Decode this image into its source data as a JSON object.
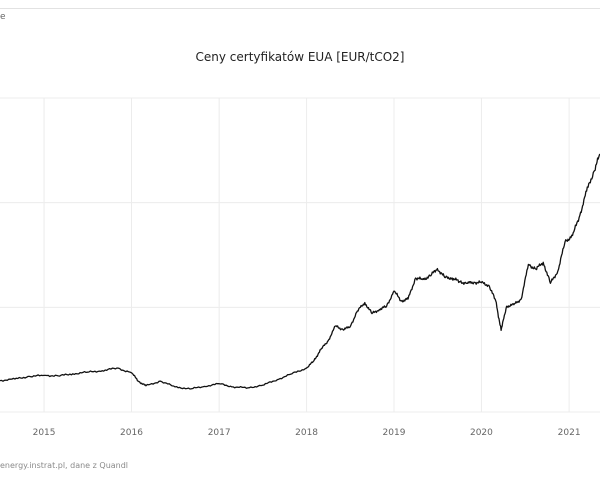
{
  "header": {
    "corner_text": "e"
  },
  "footer": {
    "source": "energy.instrat.pl, dane z Quandl"
  },
  "chart_data": {
    "type": "line",
    "title": "Ceny certyfikatów EUA [EUR/tCO2]",
    "xlabel": "",
    "ylabel": "",
    "x_tick_labels": [
      "2015",
      "2016",
      "2017",
      "2018",
      "2019",
      "2020",
      "2021"
    ],
    "xlim": [
      "2014-07-01",
      "2021-05-10"
    ],
    "ylim": [
      0,
      60
    ],
    "grid": true,
    "series": [
      {
        "x": [
          "2014-07-01",
          "2014-09-01",
          "2014-11-01",
          "2015-01-01",
          "2015-03-01",
          "2015-05-01",
          "2015-07-01",
          "2015-09-01",
          "2015-11-01",
          "2016-01-01",
          "2016-02-01",
          "2016-03-01",
          "2016-05-01",
          "2016-07-01",
          "2016-09-01",
          "2016-11-01",
          "2017-01-01",
          "2017-03-01",
          "2017-05-01",
          "2017-07-01",
          "2017-09-01",
          "2017-11-01",
          "2018-01-01",
          "2018-02-01",
          "2018-03-01",
          "2018-04-01",
          "2018-05-01",
          "2018-06-01",
          "2018-07-01",
          "2018-08-01",
          "2018-09-01",
          "2018-10-01",
          "2018-11-01",
          "2018-12-01",
          "2019-01-01",
          "2019-02-01",
          "2019-03-01",
          "2019-04-01",
          "2019-05-01",
          "2019-06-01",
          "2019-07-01",
          "2019-08-01",
          "2019-09-01",
          "2019-10-01",
          "2019-11-01",
          "2019-12-01",
          "2020-01-01",
          "2020-02-01",
          "2020-03-01",
          "2020-03-23",
          "2020-04-15",
          "2020-05-15",
          "2020-06-15",
          "2020-07-15",
          "2020-08-15",
          "2020-09-15",
          "2020-10-15",
          "2020-11-15",
          "2020-12-15",
          "2021-01-15",
          "2021-02-15",
          "2021-03-15",
          "2021-04-15",
          "2021-05-10"
        ],
        "y": [
          6.0,
          6.3,
          6.8,
          7.0,
          6.9,
          7.3,
          7.6,
          7.9,
          8.4,
          7.5,
          5.8,
          5.0,
          5.9,
          4.8,
          4.4,
          4.9,
          5.4,
          4.8,
          4.6,
          5.1,
          6.2,
          7.3,
          8.4,
          9.8,
          11.9,
          13.6,
          16.4,
          15.8,
          16.2,
          19.3,
          20.9,
          18.8,
          19.6,
          20.2,
          23.1,
          21.2,
          21.6,
          25.6,
          25.3,
          26.0,
          27.4,
          25.7,
          25.6,
          24.9,
          24.6,
          24.8,
          24.7,
          24.2,
          21.2,
          15.6,
          20.2,
          20.5,
          21.6,
          28.2,
          27.3,
          28.6,
          24.6,
          26.9,
          32.5,
          33.7,
          37.6,
          42.2,
          46.0,
          49.3
        ]
      }
    ]
  }
}
